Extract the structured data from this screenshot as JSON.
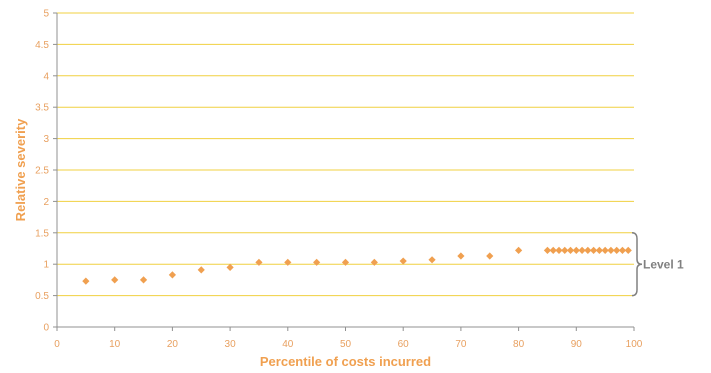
{
  "colors": {
    "grid": "#f0d040",
    "axis": "#909090",
    "marker": "#f0a050",
    "tick_text": "#e8a060",
    "title_text": "#f0a050",
    "annotation": "#808080"
  },
  "chart_data": {
    "type": "scatter",
    "title": "",
    "xlabel": "Percentile of costs incurred",
    "ylabel": "Relative severity",
    "xlim": [
      0,
      100
    ],
    "ylim": [
      0,
      5
    ],
    "x_ticks": [
      0,
      10,
      20,
      30,
      40,
      50,
      60,
      70,
      80,
      90,
      100
    ],
    "y_ticks": [
      0,
      0.5,
      1,
      1.5,
      2,
      2.5,
      3,
      3.5,
      4,
      4.5,
      5
    ],
    "grid": "horizontal",
    "marker": "diamond",
    "series": [
      {
        "x": [
          5,
          10,
          15,
          20,
          25,
          30,
          35,
          40,
          45,
          50,
          55,
          60,
          65,
          70,
          75,
          80,
          85,
          86,
          87,
          88,
          89,
          90,
          91,
          92,
          93,
          94,
          95,
          96,
          97,
          98,
          99
        ],
        "y": [
          0.73,
          0.75,
          0.75,
          0.83,
          0.91,
          0.95,
          1.03,
          1.03,
          1.03,
          1.03,
          1.03,
          1.05,
          1.07,
          1.13,
          1.13,
          1.22,
          1.22,
          1.22,
          1.22,
          1.22,
          1.22,
          1.22,
          1.22,
          1.22,
          1.22,
          1.22,
          1.22,
          1.22,
          1.22,
          1.22,
          1.22
        ]
      }
    ],
    "annotations": [
      {
        "text": "Level 1",
        "type": "brace",
        "y_range": [
          0.5,
          1.5
        ]
      }
    ]
  }
}
